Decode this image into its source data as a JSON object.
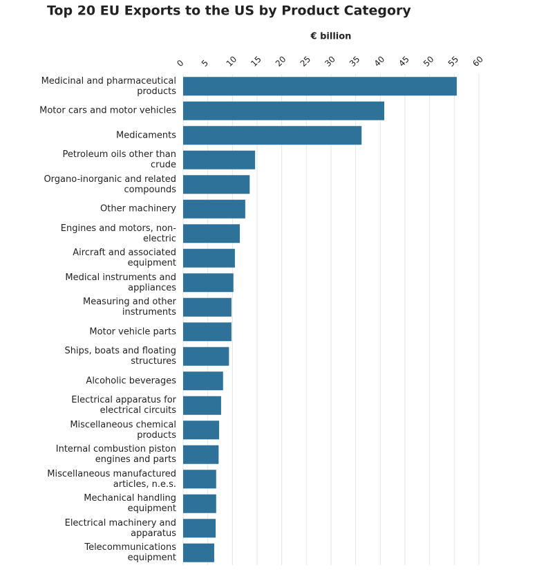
{
  "chart_data": {
    "type": "bar",
    "orientation": "horizontal",
    "title": "Top 20 EU Exports to the US by Product Category",
    "x_label": "€ billion",
    "categories": [
      "Medicinal and pharmaceutical products",
      "Motor cars and motor vehicles",
      "Medicaments",
      "Petroleum oils other than crude",
      "Organo-inorganic and related compounds",
      "Other machinery",
      "Engines and motors, non-electric",
      "Aircraft and associated equipment",
      "Medical instruments and appliances",
      "Measuring and other instruments",
      "Motor vehicle parts",
      "Ships, boats and floating structures",
      "Alcoholic beverages",
      "Electrical apparatus for electrical circuits",
      "Miscellaneous chemical products",
      "Internal combustion piston engines and parts",
      "Miscellaneous manufactured articles, n.e.s.",
      "Mechanical handling equipment",
      "Electrical machinery and apparatus",
      "Telecommunications equipment"
    ],
    "values": [
      55.5,
      40.8,
      36.2,
      14.6,
      13.5,
      12.6,
      11.5,
      10.5,
      10.2,
      9.8,
      9.8,
      9.3,
      8.1,
      7.7,
      7.3,
      7.2,
      6.7,
      6.7,
      6.6,
      6.3
    ],
    "color": "#2e7199",
    "xlim": [
      0,
      60
    ],
    "xticks": [
      0,
      5,
      10,
      15,
      20,
      25,
      30,
      35,
      40,
      45,
      50,
      55,
      60
    ],
    "grid": true
  }
}
